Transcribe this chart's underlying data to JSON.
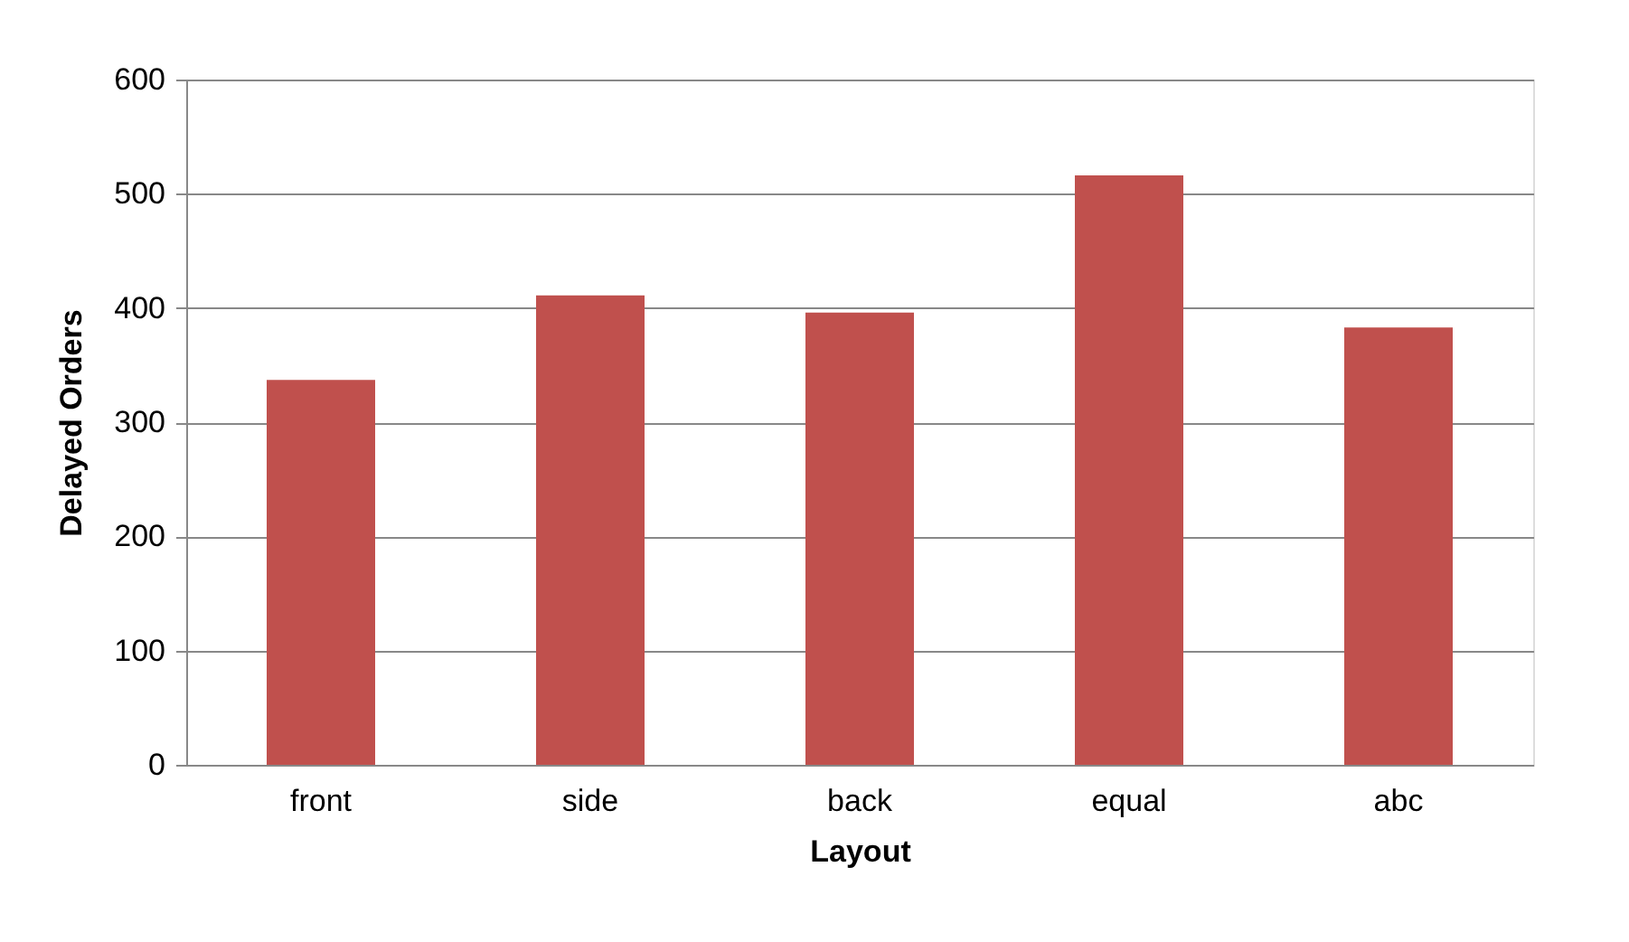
{
  "chart_data": {
    "type": "bar",
    "xlabel": "Layout",
    "ylabel": "Delayed Orders",
    "categories": [
      "front",
      "side",
      "back",
      "equal",
      "abc"
    ],
    "values": [
      337,
      411,
      396,
      516,
      383
    ],
    "color": "#c0504d",
    "ylim": [
      0,
      600
    ],
    "yticks": [
      0,
      100,
      200,
      300,
      400,
      500,
      600
    ],
    "grid": "y"
  }
}
